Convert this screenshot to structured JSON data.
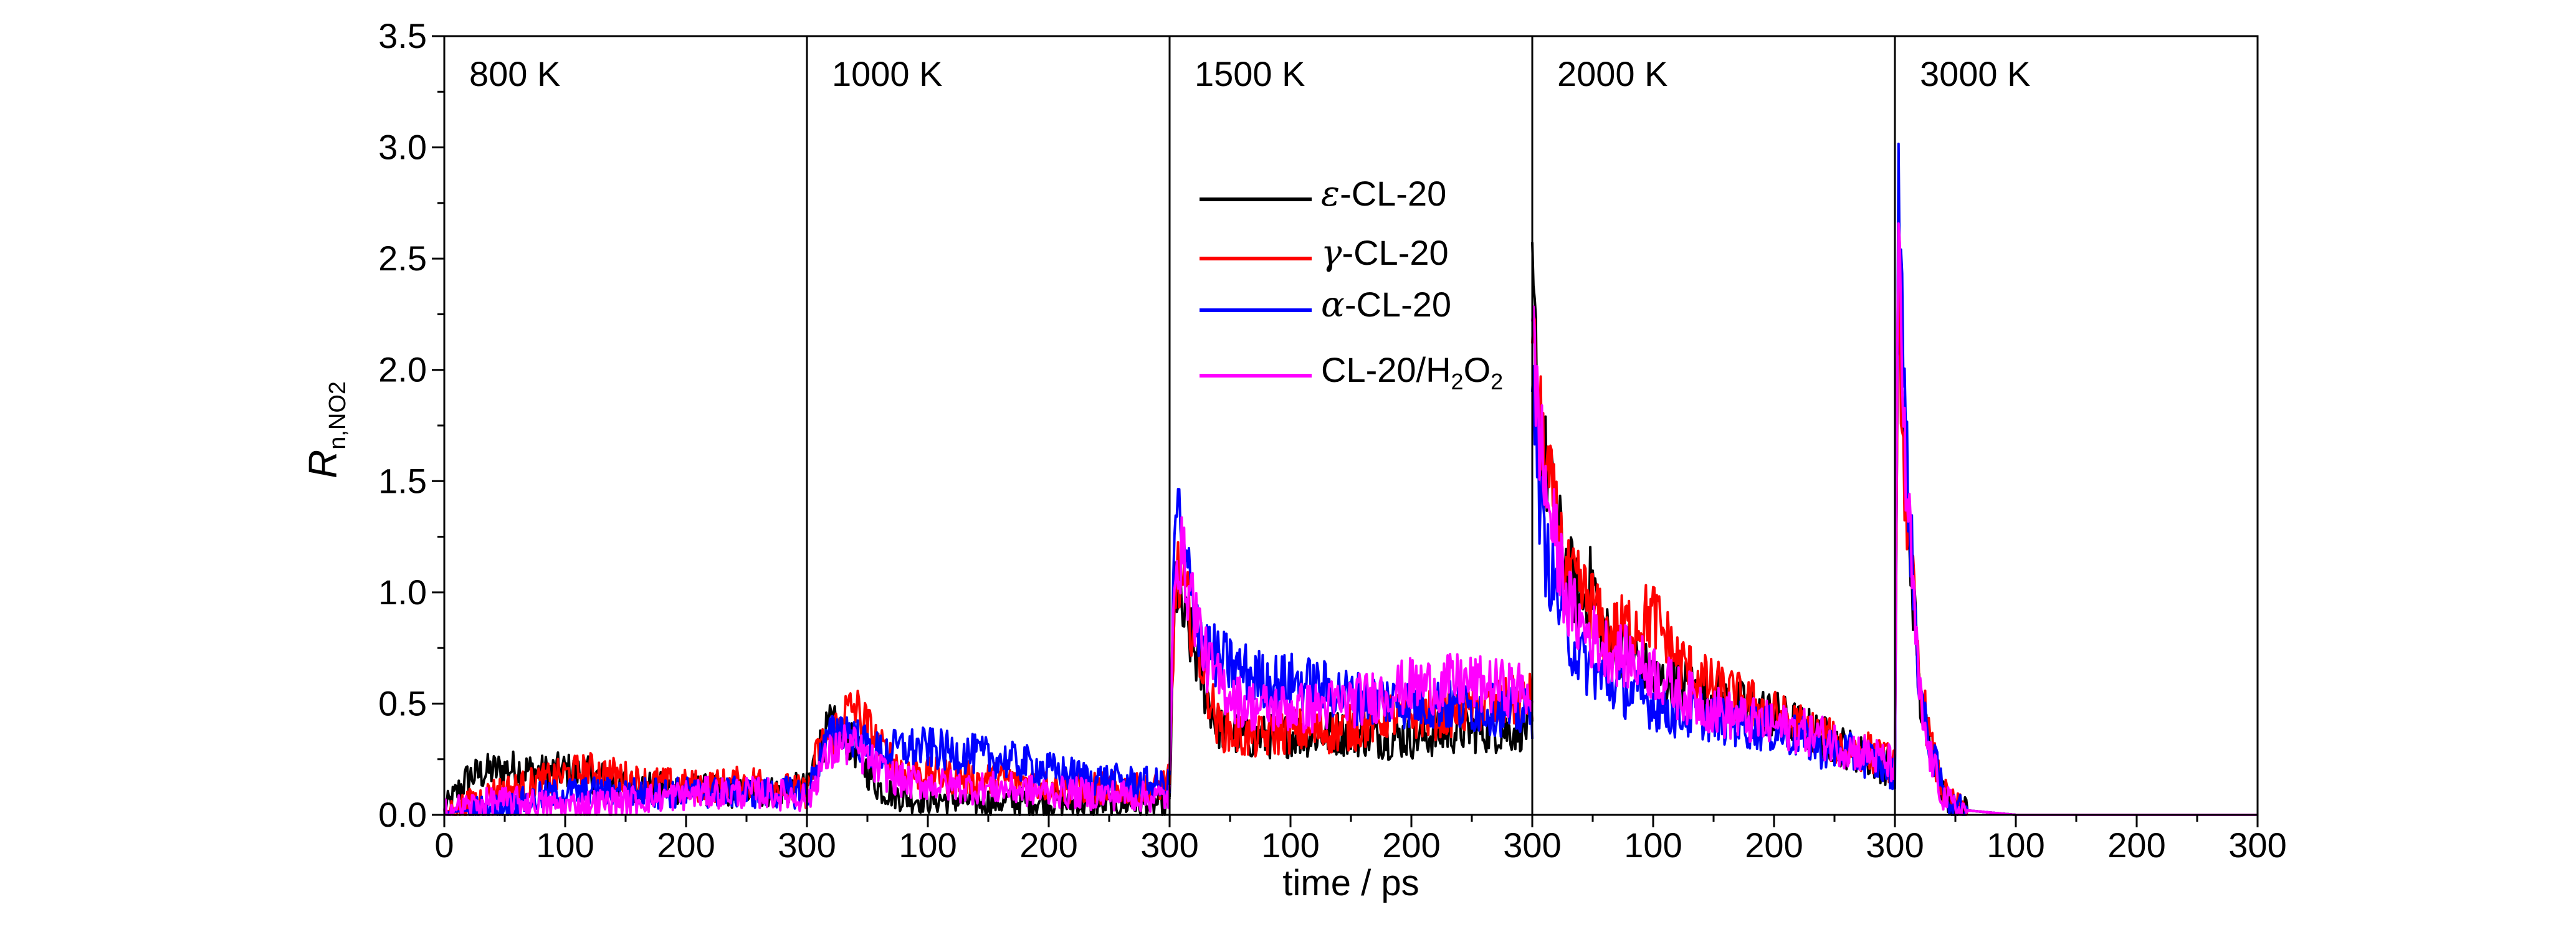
{
  "chart_data": {
    "type": "line",
    "ylabel": "R",
    "ylabel_sub": "n,NO2",
    "xlabel": "time / ps",
    "ylim": [
      0,
      3.5
    ],
    "yticks": [
      "0.0",
      "0.5",
      "1.0",
      "1.5",
      "2.0",
      "2.5",
      "3.0",
      "3.5"
    ],
    "panel_xlim": [
      0,
      300
    ],
    "xticks": [
      "0",
      "100",
      "200",
      "300",
      "100",
      "200",
      "300",
      "100",
      "200",
      "300",
      "100",
      "200",
      "300",
      "100",
      "200",
      "300"
    ],
    "panels": [
      {
        "label": "800 K"
      },
      {
        "label": "1000 K"
      },
      {
        "label": "1500 K"
      },
      {
        "label": "2000 K"
      },
      {
        "label": "3000 K"
      }
    ],
    "legend": {
      "position": "upper-middle",
      "entries": [
        {
          "italic": "ε",
          "text": "-CL-20",
          "color": "#000000"
        },
        {
          "italic": "γ",
          "text": "-CL-20",
          "color": "#ff0000"
        },
        {
          "italic": "α",
          "text": "-CL-20",
          "color": "#0000ff"
        },
        {
          "italic": "",
          "text": "CL-20/H",
          "sub1": "2",
          "mid": "O",
          "sub2": "2",
          "color": "#ff00ff"
        }
      ]
    },
    "series": [
      {
        "name": "ε-CL-20",
        "color": "#000000",
        "panels": [
          {
            "x": [
              0,
              20,
              40,
              60,
              80,
              100,
              120,
              140,
              160,
              180,
              200,
              220,
              240,
              260,
              280,
              300
            ],
            "y": [
              0.02,
              0.17,
              0.2,
              0.21,
              0.19,
              0.2,
              0.18,
              0.15,
              0.13,
              0.12,
              0.12,
              0.11,
              0.1,
              0.1,
              0.11,
              0.12
            ]
          },
          {
            "x": [
              0,
              10,
              20,
              30,
              40,
              50,
              60,
              80,
              100,
              120,
              140,
              160,
              180,
              200,
              220,
              240,
              260,
              280,
              300
            ],
            "y": [
              0.12,
              0.3,
              0.4,
              0.35,
              0.3,
              0.2,
              0.12,
              0.08,
              0.07,
              0.07,
              0.06,
              0.06,
              0.06,
              0.06,
              0.05,
              0.05,
              0.05,
              0.05,
              0.05
            ]
          },
          {
            "x": [
              0,
              5,
              10,
              20,
              30,
              40,
              60,
              80,
              100,
              120,
              140,
              160,
              180,
              200,
              220,
              240,
              260,
              280,
              300
            ],
            "y": [
              0.1,
              1.05,
              0.9,
              0.75,
              0.55,
              0.4,
              0.35,
              0.35,
              0.36,
              0.36,
              0.37,
              0.36,
              0.35,
              0.35,
              0.36,
              0.38,
              0.38,
              0.38,
              0.4
            ]
          },
          {
            "x": [
              0,
              5,
              10,
              20,
              30,
              40,
              50,
              60,
              80,
              100,
              120,
              140,
              160,
              180,
              200,
              220,
              240,
              260,
              280,
              300
            ],
            "y": [
              2.3,
              1.9,
              1.6,
              1.3,
              1.1,
              0.95,
              1.05,
              0.8,
              0.75,
              0.6,
              0.6,
              0.55,
              0.5,
              0.48,
              0.45,
              0.4,
              0.35,
              0.3,
              0.25,
              0.2
            ]
          },
          {
            "x": [
              0,
              3,
              8,
              15,
              20,
              25,
              30,
              40,
              50,
              60,
              80,
              100,
              120,
              150,
              200,
              250,
              300
            ],
            "y": [
              0.2,
              2.5,
              1.5,
              1.0,
              0.55,
              0.4,
              0.3,
              0.1,
              0.04,
              0.02,
              0.01,
              0.0,
              0.0,
              0.0,
              0.0,
              0.0,
              0.0
            ]
          }
        ]
      },
      {
        "name": "γ-CL-20",
        "color": "#ff0000",
        "panels": [
          {
            "x": [
              0,
              20,
              40,
              60,
              80,
              100,
              120,
              140,
              160,
              180,
              200,
              220,
              240,
              260,
              280,
              300
            ],
            "y": [
              0.01,
              0.05,
              0.1,
              0.12,
              0.15,
              0.18,
              0.2,
              0.18,
              0.15,
              0.14,
              0.13,
              0.13,
              0.14,
              0.15,
              0.12,
              0.1
            ]
          },
          {
            "x": [
              0,
              10,
              20,
              30,
              40,
              50,
              60,
              80,
              100,
              120,
              140,
              160,
              180,
              200,
              220,
              240,
              260,
              280,
              300
            ],
            "y": [
              0.1,
              0.3,
              0.35,
              0.45,
              0.48,
              0.4,
              0.3,
              0.2,
              0.18,
              0.17,
              0.16,
              0.16,
              0.15,
              0.13,
              0.12,
              0.12,
              0.12,
              0.11,
              0.15
            ]
          },
          {
            "x": [
              0,
              5,
              10,
              20,
              30,
              40,
              60,
              80,
              100,
              120,
              140,
              160,
              180,
              200,
              220,
              240,
              260,
              280,
              300
            ],
            "y": [
              0.1,
              1.1,
              1.0,
              0.85,
              0.6,
              0.4,
              0.35,
              0.35,
              0.38,
              0.37,
              0.38,
              0.4,
              0.45,
              0.45,
              0.45,
              0.47,
              0.48,
              0.5,
              0.52
            ]
          },
          {
            "x": [
              0,
              5,
              10,
              20,
              30,
              40,
              50,
              60,
              80,
              100,
              120,
              140,
              160,
              180,
              200,
              220,
              240,
              260,
              280,
              300
            ],
            "y": [
              2.1,
              1.8,
              1.6,
              1.3,
              1.05,
              1.0,
              0.95,
              0.8,
              0.85,
              0.9,
              0.7,
              0.6,
              0.55,
              0.5,
              0.45,
              0.4,
              0.35,
              0.3,
              0.28,
              0.22
            ]
          },
          {
            "x": [
              0,
              3,
              8,
              15,
              20,
              25,
              30,
              40,
              50,
              60,
              80,
              100,
              120,
              150,
              200,
              250,
              300
            ],
            "y": [
              0.2,
              2.4,
              1.5,
              1.0,
              0.6,
              0.45,
              0.3,
              0.1,
              0.04,
              0.02,
              0.01,
              0.0,
              0.0,
              0.0,
              0.0,
              0.0,
              0.0
            ]
          }
        ]
      },
      {
        "name": "α-CL-20",
        "color": "#0000ff",
        "panels": [
          {
            "x": [
              0,
              20,
              40,
              60,
              80,
              100,
              120,
              140,
              160,
              180,
              200,
              220,
              240,
              260,
              280,
              300
            ],
            "y": [
              0.01,
              0.02,
              0.03,
              0.05,
              0.08,
              0.1,
              0.1,
              0.1,
              0.1,
              0.1,
              0.1,
              0.1,
              0.1,
              0.1,
              0.1,
              0.1
            ]
          },
          {
            "x": [
              0,
              10,
              20,
              30,
              40,
              50,
              60,
              80,
              100,
              120,
              140,
              160,
              180,
              200,
              220,
              240,
              260,
              280,
              300
            ],
            "y": [
              0.08,
              0.25,
              0.35,
              0.4,
              0.35,
              0.3,
              0.28,
              0.3,
              0.3,
              0.28,
              0.27,
              0.25,
              0.23,
              0.2,
              0.18,
              0.16,
              0.15,
              0.14,
              0.13
            ]
          },
          {
            "x": [
              0,
              5,
              10,
              20,
              30,
              40,
              60,
              80,
              100,
              120,
              140,
              160,
              180,
              200,
              220,
              240,
              260,
              280,
              300
            ],
            "y": [
              0.15,
              1.45,
              1.2,
              0.95,
              0.75,
              0.7,
              0.65,
              0.6,
              0.6,
              0.58,
              0.55,
              0.52,
              0.52,
              0.5,
              0.5,
              0.48,
              0.48,
              0.46,
              0.45
            ]
          },
          {
            "x": [
              0,
              5,
              10,
              20,
              30,
              40,
              50,
              60,
              80,
              100,
              120,
              140,
              160,
              180,
              200,
              220,
              240,
              260,
              280,
              300
            ],
            "y": [
              2.2,
              1.5,
              1.2,
              1.0,
              0.8,
              0.7,
              0.65,
              0.6,
              0.55,
              0.5,
              0.45,
              0.45,
              0.42,
              0.4,
              0.38,
              0.35,
              0.3,
              0.28,
              0.25,
              0.18
            ]
          },
          {
            "x": [
              0,
              3,
              8,
              15,
              20,
              25,
              30,
              40,
              50,
              60,
              80,
              100,
              120,
              150,
              200,
              250,
              300
            ],
            "y": [
              0.2,
              3.05,
              1.8,
              1.05,
              0.6,
              0.4,
              0.3,
              0.1,
              0.03,
              0.02,
              0.01,
              0.0,
              0.0,
              0.0,
              0.0,
              0.0,
              0.0
            ]
          }
        ]
      },
      {
        "name": "CL-20/H2O2",
        "color": "#ff00ff",
        "panels": [
          {
            "x": [
              0,
              20,
              40,
              60,
              80,
              100,
              120,
              140,
              160,
              180,
              200,
              220,
              240,
              260,
              280,
              300
            ],
            "y": [
              0.02,
              0.04,
              0.06,
              0.06,
              0.05,
              0.04,
              0.05,
              0.06,
              0.07,
              0.08,
              0.09,
              0.1,
              0.1,
              0.1,
              0.09,
              0.08
            ]
          },
          {
            "x": [
              0,
              10,
              20,
              30,
              40,
              50,
              60,
              80,
              100,
              120,
              140,
              160,
              180,
              200,
              220,
              240,
              260,
              280,
              300
            ],
            "y": [
              0.05,
              0.2,
              0.28,
              0.32,
              0.3,
              0.25,
              0.2,
              0.15,
              0.14,
              0.13,
              0.12,
              0.12,
              0.11,
              0.1,
              0.1,
              0.09,
              0.09,
              0.08,
              0.08
            ]
          },
          {
            "x": [
              0,
              5,
              10,
              20,
              30,
              40,
              60,
              80,
              100,
              120,
              140,
              160,
              180,
              200,
              220,
              240,
              260,
              280,
              300
            ],
            "y": [
              0.2,
              1.25,
              1.15,
              0.95,
              0.7,
              0.6,
              0.5,
              0.48,
              0.48,
              0.48,
              0.5,
              0.52,
              0.55,
              0.58,
              0.58,
              0.6,
              0.58,
              0.57,
              0.55
            ]
          },
          {
            "x": [
              0,
              5,
              10,
              20,
              30,
              40,
              50,
              60,
              80,
              100,
              120,
              140,
              160,
              180,
              200,
              220,
              240,
              260,
              280,
              300
            ],
            "y": [
              2.1,
              1.8,
              1.5,
              1.2,
              0.95,
              0.85,
              0.8,
              0.75,
              0.7,
              0.65,
              0.55,
              0.5,
              0.45,
              0.42,
              0.4,
              0.38,
              0.35,
              0.3,
              0.27,
              0.22
            ]
          },
          {
            "x": [
              0,
              3,
              8,
              15,
              20,
              25,
              30,
              40,
              50,
              60,
              80,
              100,
              120,
              150,
              200,
              250,
              300
            ],
            "y": [
              0.2,
              2.75,
              1.6,
              1.0,
              0.55,
              0.35,
              0.25,
              0.08,
              0.03,
              0.02,
              0.01,
              0.0,
              0.0,
              0.0,
              0.0,
              0.0,
              0.0
            ]
          }
        ]
      }
    ]
  }
}
